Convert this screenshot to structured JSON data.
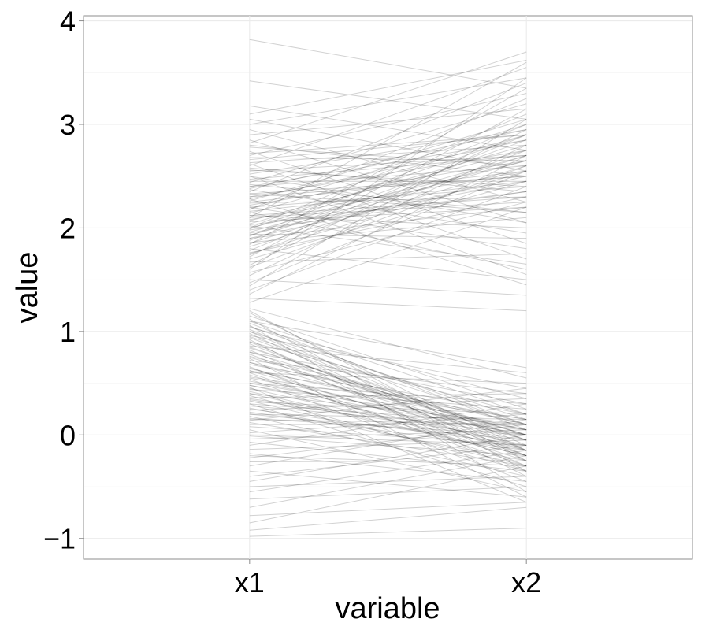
{
  "chart_data": {
    "type": "line",
    "subtype": "parallel-coordinates",
    "title": "",
    "xlabel": "variable",
    "ylabel": "value",
    "categories": [
      "x1",
      "x2"
    ],
    "ylim": [
      -1.2,
      4.05
    ],
    "yticks": [
      -1,
      0,
      1,
      2,
      3,
      4
    ],
    "ytick_labels": [
      "−1",
      "0",
      "1",
      "2",
      "3",
      "4"
    ],
    "grid": true,
    "line_color": "#000000",
    "line_opacity": 0.18,
    "panel_background": "#ffffff",
    "gridline_color": "#ebebeb",
    "series": [
      {
        "values": [
          3.82,
          3.35
        ]
      },
      {
        "values": [
          3.42,
          3.05
        ]
      },
      {
        "values": [
          3.18,
          2.75
        ]
      },
      {
        "values": [
          3.1,
          3.62
        ]
      },
      {
        "values": [
          3.05,
          2.55
        ]
      },
      {
        "values": [
          3.0,
          3.45
        ]
      },
      {
        "values": [
          2.95,
          2.25
        ]
      },
      {
        "values": [
          2.9,
          3.15
        ]
      },
      {
        "values": [
          2.85,
          2.05
        ]
      },
      {
        "values": [
          2.82,
          3.7
        ]
      },
      {
        "values": [
          2.78,
          2.6
        ]
      },
      {
        "values": [
          2.74,
          1.85
        ]
      },
      {
        "values": [
          2.7,
          3.3
        ]
      },
      {
        "values": [
          2.66,
          2.9
        ]
      },
      {
        "values": [
          2.62,
          1.7
        ]
      },
      {
        "values": [
          2.6,
          3.55
        ]
      },
      {
        "values": [
          2.56,
          2.4
        ]
      },
      {
        "values": [
          2.52,
          2.95
        ]
      },
      {
        "values": [
          2.5,
          1.55
        ]
      },
      {
        "values": [
          2.47,
          2.7
        ]
      },
      {
        "values": [
          2.44,
          3.2
        ]
      },
      {
        "values": [
          2.42,
          2.15
        ]
      },
      {
        "values": [
          2.4,
          2.85
        ]
      },
      {
        "values": [
          2.37,
          1.95
        ]
      },
      {
        "values": [
          2.35,
          3.4
        ]
      },
      {
        "values": [
          2.33,
          2.5
        ]
      },
      {
        "values": [
          2.3,
          2.75
        ]
      },
      {
        "values": [
          2.28,
          1.45
        ]
      },
      {
        "values": [
          2.26,
          3.05
        ]
      },
      {
        "values": [
          2.24,
          2.3
        ]
      },
      {
        "values": [
          2.22,
          2.65
        ]
      },
      {
        "values": [
          2.2,
          1.8
        ]
      },
      {
        "values": [
          2.18,
          3.25
        ]
      },
      {
        "values": [
          2.16,
          2.45
        ]
      },
      {
        "values": [
          2.14,
          2.9
        ]
      },
      {
        "values": [
          2.12,
          2.0
        ]
      },
      {
        "values": [
          2.1,
          3.6
        ]
      },
      {
        "values": [
          2.08,
          2.55
        ]
      },
      {
        "values": [
          2.06,
          2.2
        ]
      },
      {
        "values": [
          2.04,
          2.8
        ]
      },
      {
        "values": [
          2.02,
          1.65
        ]
      },
      {
        "values": [
          2.0,
          3.1
        ]
      },
      {
        "values": [
          1.98,
          2.35
        ]
      },
      {
        "values": [
          1.96,
          2.7
        ]
      },
      {
        "values": [
          1.94,
          1.9
        ]
      },
      {
        "values": [
          1.92,
          3.0
        ]
      },
      {
        "values": [
          1.9,
          2.5
        ]
      },
      {
        "values": [
          1.88,
          2.85
        ]
      },
      {
        "values": [
          1.86,
          2.1
        ]
      },
      {
        "values": [
          1.84,
          3.35
        ]
      },
      {
        "values": [
          1.82,
          2.6
        ]
      },
      {
        "values": [
          1.8,
          1.5
        ]
      },
      {
        "values": [
          1.78,
          2.9
        ]
      },
      {
        "values": [
          1.76,
          2.3
        ]
      },
      {
        "values": [
          1.74,
          2.75
        ]
      },
      {
        "values": [
          1.72,
          3.15
        ]
      },
      {
        "values": [
          1.7,
          2.45
        ]
      },
      {
        "values": [
          1.67,
          1.75
        ]
      },
      {
        "values": [
          1.64,
          2.95
        ]
      },
      {
        "values": [
          1.62,
          2.6
        ]
      },
      {
        "values": [
          1.6,
          3.45
        ]
      },
      {
        "values": [
          1.57,
          2.25
        ]
      },
      {
        "values": [
          1.54,
          2.8
        ]
      },
      {
        "values": [
          1.5,
          1.35
        ]
      },
      {
        "values": [
          1.47,
          2.55
        ]
      },
      {
        "values": [
          1.44,
          3.05
        ]
      },
      {
        "values": [
          1.4,
          2.4
        ]
      },
      {
        "values": [
          1.36,
          2.7
        ]
      },
      {
        "values": [
          1.32,
          1.2
        ]
      },
      {
        "values": [
          1.28,
          2.2
        ]
      },
      {
        "values": [
          2.68,
          2.65
        ]
      },
      {
        "values": [
          2.45,
          2.45
        ]
      },
      {
        "values": [
          2.58,
          2.35
        ]
      },
      {
        "values": [
          2.25,
          2.55
        ]
      },
      {
        "values": [
          2.15,
          1.6
        ]
      },
      {
        "values": [
          2.0,
          2.65
        ]
      },
      {
        "values": [
          2.38,
          2.95
        ]
      },
      {
        "values": [
          1.95,
          2.45
        ]
      },
      {
        "values": [
          2.8,
          2.5
        ]
      },
      {
        "values": [
          2.28,
          2.85
        ]
      },
      {
        "values": [
          2.12,
          2.3
        ]
      },
      {
        "values": [
          1.85,
          2.7
        ]
      },
      {
        "values": [
          2.5,
          2.05
        ]
      },
      {
        "values": [
          2.07,
          2.75
        ]
      },
      {
        "values": [
          2.33,
          2.15
        ]
      },
      {
        "values": [
          1.99,
          2.9
        ]
      },
      {
        "values": [
          2.2,
          2.4
        ]
      },
      {
        "values": [
          2.4,
          2.6
        ]
      },
      {
        "values": [
          1.9,
          2.2
        ]
      },
      {
        "values": [
          2.63,
          2.8
        ]
      },
      {
        "values": [
          1.75,
          2.55
        ]
      },
      {
        "values": [
          2.18,
          3.0
        ]
      },
      {
        "values": [
          2.55,
          2.7
        ]
      },
      {
        "values": [
          2.03,
          2.35
        ]
      },
      {
        "values": [
          2.3,
          2.5
        ]
      },
      {
        "values": [
          1.93,
          2.65
        ]
      },
      {
        "values": [
          2.72,
          2.9
        ]
      },
      {
        "values": [
          2.1,
          2.25
        ]
      },
      {
        "values": [
          1.22,
          0.55
        ]
      },
      {
        "values": [
          1.18,
          -0.15
        ]
      },
      {
        "values": [
          1.15,
          0.25
        ]
      },
      {
        "values": [
          1.12,
          -0.35
        ]
      },
      {
        "values": [
          1.1,
          0.65
        ]
      },
      {
        "values": [
          1.08,
          0.05
        ]
      },
      {
        "values": [
          1.06,
          -0.55
        ]
      },
      {
        "values": [
          1.04,
          0.35
        ]
      },
      {
        "values": [
          1.02,
          -0.1
        ]
      },
      {
        "values": [
          1.0,
          0.15
        ]
      },
      {
        "values": [
          0.98,
          -0.25
        ]
      },
      {
        "values": [
          0.96,
          0.45
        ]
      },
      {
        "values": [
          0.94,
          -0.05
        ]
      },
      {
        "values": [
          0.92,
          -0.4
        ]
      },
      {
        "values": [
          0.9,
          0.2
        ]
      },
      {
        "values": [
          0.88,
          -0.15
        ]
      },
      {
        "values": [
          0.86,
          0.6
        ]
      },
      {
        "values": [
          0.84,
          0.0
        ]
      },
      {
        "values": [
          0.82,
          -0.3
        ]
      },
      {
        "values": [
          0.8,
          0.3
        ]
      },
      {
        "values": [
          0.78,
          -0.2
        ]
      },
      {
        "values": [
          0.76,
          0.1
        ]
      },
      {
        "values": [
          0.74,
          -0.6
        ]
      },
      {
        "values": [
          0.72,
          0.4
        ]
      },
      {
        "values": [
          0.7,
          -0.05
        ]
      },
      {
        "values": [
          0.68,
          0.2
        ]
      },
      {
        "values": [
          0.66,
          -0.35
        ]
      },
      {
        "values": [
          0.64,
          0.05
        ]
      },
      {
        "values": [
          0.62,
          -0.15
        ]
      },
      {
        "values": [
          0.6,
          0.5
        ]
      },
      {
        "values": [
          0.58,
          -0.25
        ]
      },
      {
        "values": [
          0.56,
          0.15
        ]
      },
      {
        "values": [
          0.54,
          -0.45
        ]
      },
      {
        "values": [
          0.52,
          0.0
        ]
      },
      {
        "values": [
          0.5,
          0.3
        ]
      },
      {
        "values": [
          0.48,
          -0.1
        ]
      },
      {
        "values": [
          0.46,
          -0.65
        ]
      },
      {
        "values": [
          0.44,
          0.25
        ]
      },
      {
        "values": [
          0.42,
          -0.2
        ]
      },
      {
        "values": [
          0.4,
          0.1
        ]
      },
      {
        "values": [
          0.38,
          -0.35
        ]
      },
      {
        "values": [
          0.36,
          0.4
        ]
      },
      {
        "values": [
          0.34,
          -0.05
        ]
      },
      {
        "values": [
          0.32,
          0.2
        ]
      },
      {
        "values": [
          0.3,
          -0.5
        ]
      },
      {
        "values": [
          0.28,
          0.05
        ]
      },
      {
        "values": [
          0.26,
          -0.25
        ]
      },
      {
        "values": [
          0.24,
          0.35
        ]
      },
      {
        "values": [
          0.22,
          -0.15
        ]
      },
      {
        "values": [
          0.2,
          0.15
        ]
      },
      {
        "values": [
          0.18,
          -0.4
        ]
      },
      {
        "values": [
          0.16,
          0.0
        ]
      },
      {
        "values": [
          0.14,
          0.45
        ]
      },
      {
        "values": [
          0.12,
          -0.3
        ]
      },
      {
        "values": [
          0.1,
          0.1
        ]
      },
      {
        "values": [
          0.08,
          -0.1
        ]
      },
      {
        "values": [
          0.05,
          -0.55
        ]
      },
      {
        "values": [
          0.02,
          0.2
        ]
      },
      {
        "values": [
          -0.01,
          -0.2
        ]
      },
      {
        "values": [
          -0.04,
          0.05
        ]
      },
      {
        "values": [
          -0.07,
          -0.35
        ]
      },
      {
        "values": [
          -0.1,
          0.3
        ]
      },
      {
        "values": [
          -0.14,
          -0.05
        ]
      },
      {
        "values": [
          -0.18,
          -0.45
        ]
      },
      {
        "values": [
          -0.22,
          0.1
        ]
      },
      {
        "values": [
          -0.26,
          -0.25
        ]
      },
      {
        "values": [
          -0.3,
          0.15
        ]
      },
      {
        "values": [
          -0.35,
          -0.6
        ]
      },
      {
        "values": [
          -0.4,
          -0.1
        ]
      },
      {
        "values": [
          -0.45,
          0.0
        ]
      },
      {
        "values": [
          -0.5,
          -0.4
        ]
      },
      {
        "values": [
          -0.55,
          -0.15
        ]
      },
      {
        "values": [
          -0.62,
          -0.5
        ]
      },
      {
        "values": [
          -0.7,
          -0.2
        ]
      },
      {
        "values": [
          -0.78,
          -0.65
        ]
      },
      {
        "values": [
          -0.85,
          -0.3
        ]
      },
      {
        "values": [
          -0.92,
          -0.7
        ]
      },
      {
        "values": [
          -0.98,
          -0.9
        ]
      },
      {
        "values": [
          0.95,
          0.1
        ]
      },
      {
        "values": [
          0.85,
          -0.05
        ]
      },
      {
        "values": [
          0.75,
          0.0
        ]
      },
      {
        "values": [
          0.65,
          -0.2
        ]
      },
      {
        "values": [
          0.55,
          0.05
        ]
      },
      {
        "values": [
          0.45,
          -0.15
        ]
      },
      {
        "values": [
          0.35,
          0.0
        ]
      },
      {
        "values": [
          0.25,
          -0.1
        ]
      },
      {
        "values": [
          1.05,
          0.1
        ]
      },
      {
        "values": [
          0.9,
          -0.2
        ]
      },
      {
        "values": [
          0.7,
          0.1
        ]
      },
      {
        "values": [
          0.6,
          -0.3
        ]
      },
      {
        "values": [
          0.5,
          0.05
        ]
      },
      {
        "values": [
          0.4,
          -0.2
        ]
      },
      {
        "values": [
          0.3,
          0.1
        ]
      },
      {
        "values": [
          0.2,
          -0.05
        ]
      },
      {
        "values": [
          1.0,
          -0.15
        ]
      },
      {
        "values": [
          0.8,
          0.0
        ]
      },
      {
        "values": [
          0.62,
          0.15
        ]
      },
      {
        "values": [
          0.48,
          0.0
        ]
      },
      {
        "values": [
          0.33,
          -0.3
        ]
      },
      {
        "values": [
          0.15,
          0.1
        ]
      },
      {
        "values": [
          0.0,
          -0.1
        ]
      },
      {
        "values": [
          -0.2,
          -0.3
        ]
      },
      {
        "values": [
          1.2,
          -0.25
        ]
      },
      {
        "values": [
          1.1,
          0.2
        ]
      }
    ]
  }
}
